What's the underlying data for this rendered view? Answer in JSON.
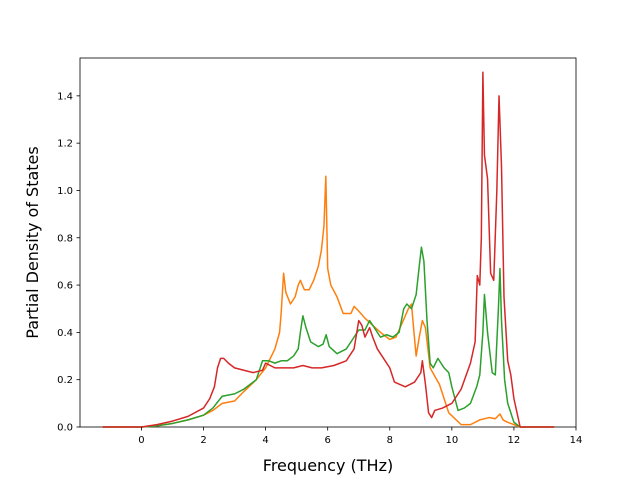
{
  "chart_data": {
    "type": "line",
    "title": "",
    "xlabel": "Frequency (THz)",
    "ylabel": "Partial Density of States",
    "xlim": [
      -1.98,
      14
    ],
    "ylim": [
      0,
      1.56
    ],
    "xticks": [
      0,
      2,
      4,
      6,
      8,
      10,
      12,
      14
    ],
    "yticks": [
      0.0,
      0.2,
      0.4,
      0.6,
      0.8,
      1.0,
      1.2,
      1.4
    ],
    "xtick_labels": [
      "0",
      "2",
      "4",
      "6",
      "8",
      "10",
      "12",
      "14"
    ],
    "ytick_labels": [
      "0.0",
      "0.2",
      "0.4",
      "0.6",
      "0.8",
      "1.0",
      "1.2",
      "1.4"
    ],
    "grid": false,
    "legend": "none",
    "series": [
      {
        "color": "#ff7f0e",
        "points": [
          [
            -1.25,
            0
          ],
          [
            0,
            0
          ],
          [
            0.5,
            0.005
          ],
          [
            1,
            0.015
          ],
          [
            1.5,
            0.03
          ],
          [
            2,
            0.05
          ],
          [
            2.3,
            0.07
          ],
          [
            2.6,
            0.1
          ],
          [
            3.0,
            0.11
          ],
          [
            3.3,
            0.15
          ],
          [
            3.7,
            0.2
          ],
          [
            4.0,
            0.25
          ],
          [
            4.3,
            0.33
          ],
          [
            4.45,
            0.4
          ],
          [
            4.5,
            0.48
          ],
          [
            4.58,
            0.65
          ],
          [
            4.65,
            0.57
          ],
          [
            4.8,
            0.52
          ],
          [
            4.95,
            0.55
          ],
          [
            5.05,
            0.6
          ],
          [
            5.12,
            0.62
          ],
          [
            5.25,
            0.58
          ],
          [
            5.4,
            0.58
          ],
          [
            5.55,
            0.62
          ],
          [
            5.7,
            0.68
          ],
          [
            5.8,
            0.75
          ],
          [
            5.88,
            0.85
          ],
          [
            5.94,
            1.06
          ],
          [
            6.0,
            0.67
          ],
          [
            6.1,
            0.6
          ],
          [
            6.3,
            0.55
          ],
          [
            6.5,
            0.48
          ],
          [
            6.75,
            0.48
          ],
          [
            6.85,
            0.51
          ],
          [
            7.0,
            0.49
          ],
          [
            7.2,
            0.46
          ],
          [
            7.45,
            0.43
          ],
          [
            7.7,
            0.4
          ],
          [
            8.0,
            0.37
          ],
          [
            8.2,
            0.38
          ],
          [
            8.4,
            0.44
          ],
          [
            8.6,
            0.5
          ],
          [
            8.7,
            0.52
          ],
          [
            8.78,
            0.4
          ],
          [
            8.85,
            0.3
          ],
          [
            8.95,
            0.38
          ],
          [
            9.05,
            0.45
          ],
          [
            9.15,
            0.42
          ],
          [
            9.3,
            0.25
          ],
          [
            9.6,
            0.18
          ],
          [
            9.9,
            0.06
          ],
          [
            10.3,
            0.01
          ],
          [
            10.6,
            0.01
          ],
          [
            10.9,
            0.03
          ],
          [
            11.2,
            0.04
          ],
          [
            11.4,
            0.035
          ],
          [
            11.55,
            0.055
          ],
          [
            11.65,
            0.03
          ],
          [
            11.8,
            0.02
          ],
          [
            12.0,
            0.01
          ],
          [
            12.2,
            0
          ],
          [
            13.3,
            0
          ]
        ]
      },
      {
        "color": "#2ca02c",
        "points": [
          [
            -1.25,
            0
          ],
          [
            0,
            0
          ],
          [
            0.5,
            0.005
          ],
          [
            1,
            0.015
          ],
          [
            1.5,
            0.03
          ],
          [
            2,
            0.05
          ],
          [
            2.3,
            0.08
          ],
          [
            2.6,
            0.13
          ],
          [
            3.0,
            0.14
          ],
          [
            3.3,
            0.16
          ],
          [
            3.7,
            0.2
          ],
          [
            3.9,
            0.28
          ],
          [
            4.1,
            0.28
          ],
          [
            4.3,
            0.27
          ],
          [
            4.5,
            0.28
          ],
          [
            4.7,
            0.28
          ],
          [
            4.9,
            0.3
          ],
          [
            5.05,
            0.33
          ],
          [
            5.12,
            0.4
          ],
          [
            5.2,
            0.47
          ],
          [
            5.3,
            0.42
          ],
          [
            5.45,
            0.36
          ],
          [
            5.7,
            0.34
          ],
          [
            5.85,
            0.35
          ],
          [
            5.95,
            0.39
          ],
          [
            6.05,
            0.34
          ],
          [
            6.3,
            0.31
          ],
          [
            6.6,
            0.33
          ],
          [
            6.8,
            0.37
          ],
          [
            7.0,
            0.41
          ],
          [
            7.2,
            0.41
          ],
          [
            7.35,
            0.45
          ],
          [
            7.5,
            0.42
          ],
          [
            7.7,
            0.38
          ],
          [
            7.9,
            0.39
          ],
          [
            8.1,
            0.38
          ],
          [
            8.3,
            0.4
          ],
          [
            8.45,
            0.5
          ],
          [
            8.55,
            0.52
          ],
          [
            8.7,
            0.5
          ],
          [
            8.85,
            0.56
          ],
          [
            8.95,
            0.68
          ],
          [
            9.02,
            0.76
          ],
          [
            9.1,
            0.7
          ],
          [
            9.2,
            0.45
          ],
          [
            9.3,
            0.27
          ],
          [
            9.4,
            0.25
          ],
          [
            9.55,
            0.29
          ],
          [
            9.75,
            0.25
          ],
          [
            9.9,
            0.23
          ],
          [
            10.0,
            0.17
          ],
          [
            10.2,
            0.07
          ],
          [
            10.4,
            0.08
          ],
          [
            10.6,
            0.1
          ],
          [
            10.8,
            0.17
          ],
          [
            10.9,
            0.22
          ],
          [
            11.0,
            0.4
          ],
          [
            11.05,
            0.56
          ],
          [
            11.15,
            0.4
          ],
          [
            11.3,
            0.23
          ],
          [
            11.4,
            0.22
          ],
          [
            11.5,
            0.5
          ],
          [
            11.55,
            0.67
          ],
          [
            11.6,
            0.45
          ],
          [
            11.7,
            0.2
          ],
          [
            11.8,
            0.1
          ],
          [
            12.0,
            0.02
          ],
          [
            12.2,
            0
          ],
          [
            13.3,
            0
          ]
        ]
      },
      {
        "color": "#d62728",
        "points": [
          [
            -1.25,
            0
          ],
          [
            0,
            0
          ],
          [
            0.5,
            0.01
          ],
          [
            1,
            0.025
          ],
          [
            1.5,
            0.045
          ],
          [
            2,
            0.08
          ],
          [
            2.2,
            0.12
          ],
          [
            2.35,
            0.17
          ],
          [
            2.45,
            0.25
          ],
          [
            2.55,
            0.29
          ],
          [
            2.65,
            0.29
          ],
          [
            2.8,
            0.27
          ],
          [
            3.0,
            0.25
          ],
          [
            3.3,
            0.24
          ],
          [
            3.6,
            0.23
          ],
          [
            3.9,
            0.24
          ],
          [
            4.0,
            0.27
          ],
          [
            4.3,
            0.25
          ],
          [
            4.6,
            0.25
          ],
          [
            4.9,
            0.25
          ],
          [
            5.2,
            0.26
          ],
          [
            5.5,
            0.25
          ],
          [
            5.8,
            0.25
          ],
          [
            6.2,
            0.26
          ],
          [
            6.6,
            0.28
          ],
          [
            6.85,
            0.33
          ],
          [
            7.0,
            0.45
          ],
          [
            7.1,
            0.43
          ],
          [
            7.2,
            0.38
          ],
          [
            7.35,
            0.42
          ],
          [
            7.45,
            0.38
          ],
          [
            7.6,
            0.33
          ],
          [
            7.75,
            0.3
          ],
          [
            8.0,
            0.25
          ],
          [
            8.15,
            0.19
          ],
          [
            8.5,
            0.17
          ],
          [
            8.8,
            0.19
          ],
          [
            9.0,
            0.23
          ],
          [
            9.05,
            0.28
          ],
          [
            9.15,
            0.18
          ],
          [
            9.25,
            0.06
          ],
          [
            9.35,
            0.04
          ],
          [
            9.45,
            0.07
          ],
          [
            9.7,
            0.08
          ],
          [
            10.0,
            0.1
          ],
          [
            10.3,
            0.16
          ],
          [
            10.6,
            0.27
          ],
          [
            10.75,
            0.36
          ],
          [
            10.82,
            0.64
          ],
          [
            10.9,
            0.6
          ],
          [
            10.95,
            0.8
          ],
          [
            11.0,
            1.5
          ],
          [
            11.05,
            1.15
          ],
          [
            11.15,
            1.05
          ],
          [
            11.25,
            0.65
          ],
          [
            11.35,
            0.62
          ],
          [
            11.45,
            1.0
          ],
          [
            11.52,
            1.4
          ],
          [
            11.6,
            1.1
          ],
          [
            11.68,
            0.55
          ],
          [
            11.8,
            0.28
          ],
          [
            11.9,
            0.22
          ],
          [
            12.0,
            0.12
          ],
          [
            12.2,
            0
          ],
          [
            13.3,
            0
          ]
        ]
      }
    ]
  }
}
